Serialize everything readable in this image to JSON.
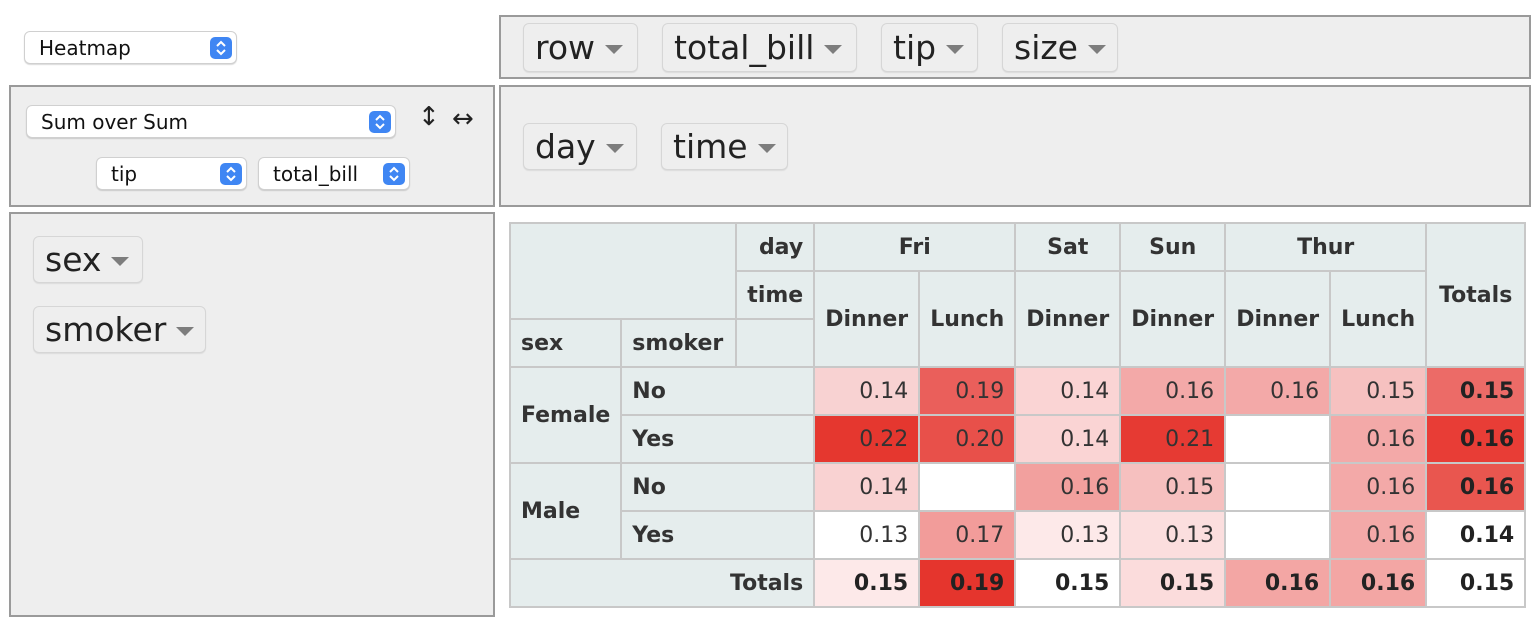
{
  "renderer": {
    "selected": "Heatmap"
  },
  "aggregator": {
    "selected": "Sum over Sum",
    "arg1": "tip",
    "arg2": "total_bill",
    "row_order_icon": "↕",
    "col_order_icon": "↔"
  },
  "unused_attrs": [
    "row",
    "total_bill",
    "tip",
    "size"
  ],
  "col_attrs": [
    "day",
    "time"
  ],
  "row_attrs": [
    "sex",
    "smoker"
  ],
  "pivot": {
    "col_attr_labels": [
      "day",
      "time"
    ],
    "row_attr_labels": [
      "sex",
      "smoker"
    ],
    "days": [
      "Fri",
      "Sat",
      "Sun",
      "Thur"
    ],
    "times": [
      "Dinner",
      "Lunch",
      "Dinner",
      "Dinner",
      "Dinner",
      "Lunch"
    ],
    "totals_label": "Totals",
    "row_groups": [
      {
        "label": "Female",
        "rows": [
          {
            "label": "No",
            "cells": [
              "0.14",
              "0.19",
              "0.14",
              "0.16",
              "0.16",
              "0.15"
            ],
            "total": "0.15"
          },
          {
            "label": "Yes",
            "cells": [
              "0.22",
              "0.20",
              "0.14",
              "0.21",
              "",
              "0.16"
            ],
            "total": "0.16"
          }
        ]
      },
      {
        "label": "Male",
        "rows": [
          {
            "label": "No",
            "cells": [
              "0.14",
              "",
              "0.16",
              "0.15",
              "",
              "0.16"
            ],
            "total": "0.16"
          },
          {
            "label": "Yes",
            "cells": [
              "0.13",
              "0.17",
              "0.13",
              "0.13",
              "",
              "0.16"
            ],
            "total": "0.14"
          }
        ]
      }
    ],
    "col_totals": [
      "0.15",
      "0.19",
      "0.15",
      "0.15",
      "0.16",
      "0.16"
    ],
    "grand_total": "0.15",
    "cell_colors": [
      [
        "#f8d2d2",
        "#ea5f5b",
        "#fad4d4",
        "#f3a9a8",
        "#f3a9a8",
        "#f6c1c0"
      ],
      [
        "#e5372f",
        "#e8504a",
        "#fad4d4",
        "#e63a33",
        "#ffffff",
        "#f3a9a8"
      ],
      [
        "#f9d2d2",
        "#ffffff",
        "#f2a09e",
        "#f6c0bf",
        "#ffffff",
        "#f3a9a8"
      ],
      [
        "#ffffff",
        "#f29c9a",
        "#fde9e9",
        "#fbdede",
        "#ffffff",
        "#f3a9a8"
      ]
    ],
    "row_total_colors": [
      "#ec6b67",
      "#e83d36",
      "#e9564f",
      "#ffffff"
    ],
    "col_total_colors": [
      "#fde9e9",
      "#e5352d",
      "#ffffff",
      "#fbdcdc",
      "#f3a6a4",
      "#f3a6a4"
    ],
    "grand_total_color": "#ffffff"
  }
}
